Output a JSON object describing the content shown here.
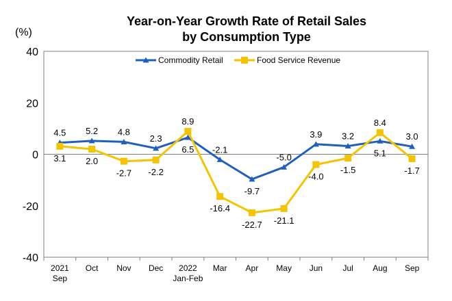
{
  "chart_data": {
    "type": "line",
    "title_line1": "Year-on-Year Growth Rate of Retail Sales",
    "title_line2": "by Consumption Type",
    "unit_label": "(%)",
    "ylim": [
      -40,
      40
    ],
    "yticks": [
      "40",
      "20",
      "0",
      "-20",
      "-40"
    ],
    "ytick_values": [
      40,
      20,
      0,
      -20,
      -40
    ],
    "categories": [
      [
        "2021",
        "Sep"
      ],
      [
        "Oct"
      ],
      [
        "Nov"
      ],
      [
        "Dec"
      ],
      [
        "2022",
        "Jan-Feb"
      ],
      [
        "Mar"
      ],
      [
        "Apr"
      ],
      [
        "May"
      ],
      [
        "Jun"
      ],
      [
        "Jul"
      ],
      [
        "Aug"
      ],
      [
        "Sep"
      ]
    ],
    "legend_position": "top",
    "grid": false,
    "series": [
      {
        "name": "Commodity Retail",
        "color": "#1f5fbf",
        "marker": "triangle",
        "values": [
          4.5,
          5.2,
          4.8,
          2.3,
          6.5,
          -2.1,
          -9.7,
          -5.0,
          3.9,
          3.2,
          5.1,
          3.0
        ],
        "labels": [
          "4.5",
          "5.2",
          "4.8",
          "2.3",
          "6.5",
          "-2.1",
          "-9.7",
          "-5.0",
          "3.9",
          "3.2",
          "5.1",
          "3.0"
        ],
        "label_pos": [
          "above",
          "above",
          "above",
          "above",
          "below",
          "above",
          "below",
          "above",
          "above",
          "above",
          "below",
          "above"
        ]
      },
      {
        "name": "Food Service Revenue",
        "color": "#f5c400",
        "marker": "square",
        "values": [
          3.1,
          2.0,
          -2.7,
          -2.2,
          8.9,
          -16.4,
          -22.7,
          -21.1,
          -4.0,
          -1.5,
          8.4,
          -1.7
        ],
        "labels": [
          "3.1",
          "2.0",
          "-2.7",
          "-2.2",
          "8.9",
          "-16.4",
          "-22.7",
          "-21.1",
          "-4.0",
          "-1.5",
          "8.4",
          "-1.7"
        ],
        "label_pos": [
          "below",
          "below",
          "below",
          "below",
          "above",
          "below",
          "below",
          "below",
          "below",
          "below",
          "above",
          "below"
        ]
      }
    ]
  }
}
